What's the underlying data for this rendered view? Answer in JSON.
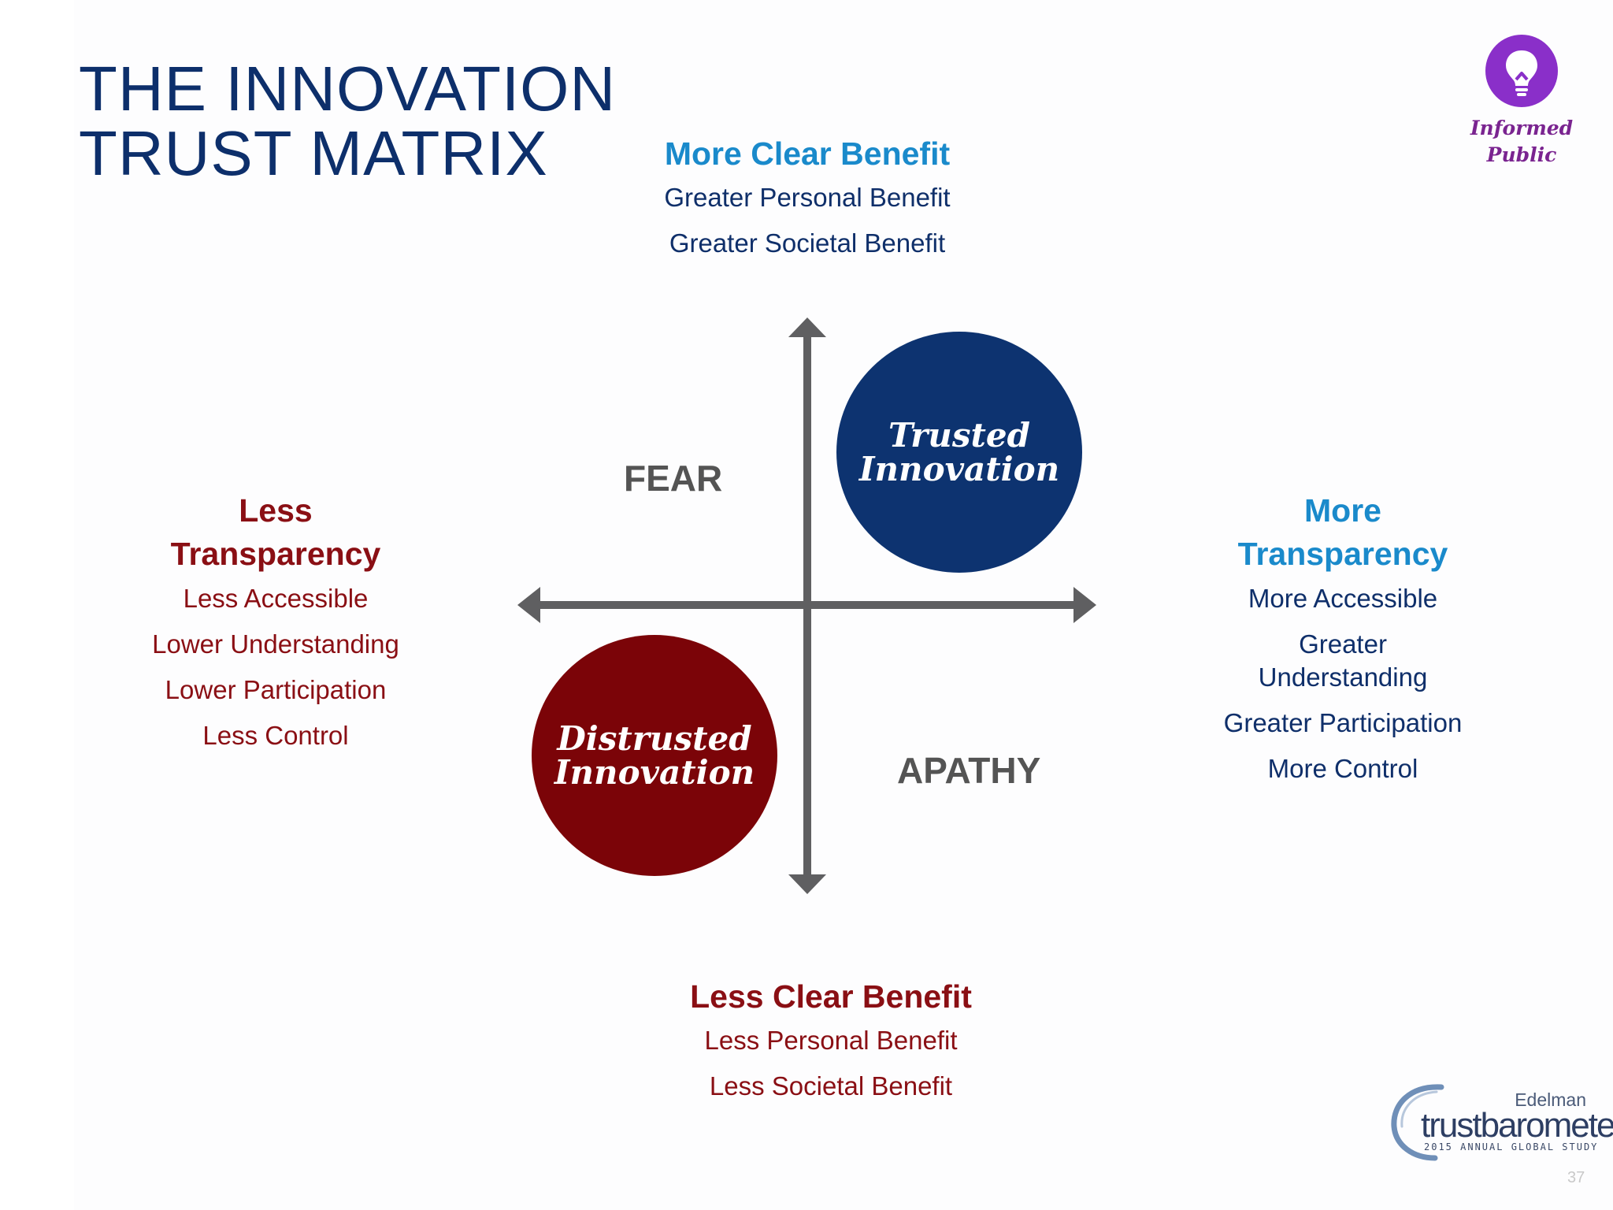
{
  "slide": {
    "title_lines": [
      "THE INNOVATION",
      "TRUST MATRIX"
    ],
    "page_number": "37"
  },
  "badge": {
    "icon": "lightbulb-icon",
    "color": "#8a2fc9",
    "line1": "Informed",
    "line2": "Public"
  },
  "axes": {
    "top": {
      "heading": "More Clear Benefit",
      "items": [
        "Greater Personal Benefit",
        "Greater Societal Benefit"
      ]
    },
    "bottom": {
      "heading": "Less Clear Benefit",
      "items": [
        "Less Personal Benefit",
        "Less Societal Benefit"
      ]
    },
    "left": {
      "heading_line1": "Less",
      "heading_line2": "Transparency",
      "items": [
        "Less Accessible",
        "Lower Understanding",
        "Lower Participation",
        "Less Control"
      ]
    },
    "right": {
      "heading_line1": "More",
      "heading_line2": "Transparency",
      "items": [
        "More Accessible",
        "Greater Understanding",
        "Greater Participation",
        "More Control"
      ]
    }
  },
  "quadrants": {
    "top_left": "FEAR",
    "bottom_right": "APATHY",
    "top_right_line1": "Trusted",
    "top_right_line2": "Innovation",
    "bottom_left_line1": "Distrusted",
    "bottom_left_line2": "Innovation"
  },
  "colors": {
    "navy": "#0d3370",
    "dark_red": "#7b0408",
    "blue_accent": "#1a8acb",
    "axis_gray": "#5f5f61"
  },
  "logo": {
    "brand": "Edelman",
    "name_part1": "trust",
    "name_part2": "barometer",
    "tagline": "2015 ANNUAL GLOBAL STUDY"
  }
}
